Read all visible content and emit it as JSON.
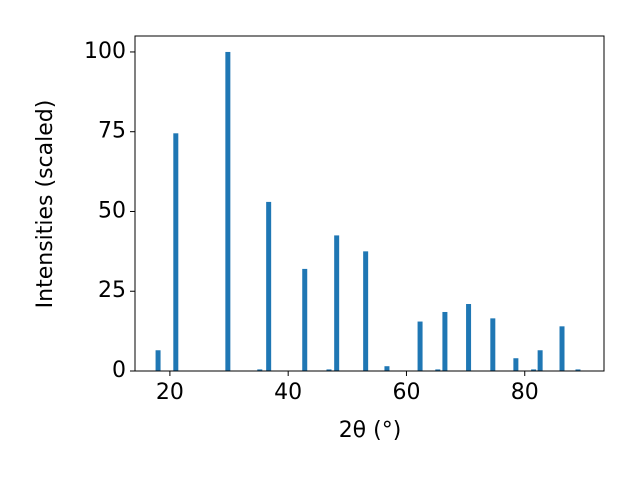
{
  "chart_data": {
    "type": "bar",
    "x": [
      18.0,
      21.0,
      29.8,
      35.2,
      36.7,
      42.8,
      46.9,
      48.2,
      53.1,
      56.7,
      62.3,
      65.3,
      66.5,
      70.5,
      74.6,
      78.5,
      81.5,
      82.6,
      86.3,
      89.0
    ],
    "values": [
      6.5,
      74.5,
      100,
      0.5,
      53,
      32,
      0.5,
      42.5,
      37.5,
      1.5,
      15.5,
      0.5,
      18.5,
      21,
      16.5,
      4,
      0.5,
      6.5,
      14,
      0.5
    ],
    "color": "#1f77b4",
    "xlabel": "2θ (°)",
    "ylabel": "Intensities (scaled)",
    "xlim": [
      14.1,
      93.4
    ],
    "xticks": [
      20,
      40,
      60,
      80
    ],
    "ylim": [
      0,
      105
    ],
    "yticks": [
      0,
      25,
      50,
      75,
      100
    ]
  }
}
